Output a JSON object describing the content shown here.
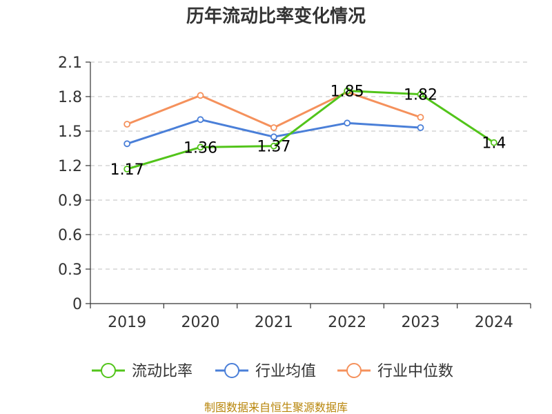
{
  "chart_data": {
    "type": "line",
    "title": "历年流动比率变化情况",
    "categories": [
      "2019",
      "2020",
      "2021",
      "2022",
      "2023",
      "2024"
    ],
    "ylim": [
      0,
      2.1
    ],
    "yticks": [
      "0",
      "0.3",
      "0.6",
      "0.9",
      "1.2",
      "1.5",
      "1.8",
      "2.1"
    ],
    "grid": true,
    "legend_position": "bottom",
    "series": [
      {
        "name": "流动比率",
        "color": "#52c41a",
        "values": [
          1.17,
          1.36,
          1.37,
          1.85,
          1.82,
          1.4
        ],
        "labels": [
          "1.17",
          "1.36",
          "1.37",
          "1.85",
          "1.82",
          "1.4"
        ]
      },
      {
        "name": "行业均值",
        "color": "#4a7fd8",
        "values": [
          1.39,
          1.6,
          1.45,
          1.57,
          1.53,
          null
        ]
      },
      {
        "name": "行业中位数",
        "color": "#f5915c",
        "values": [
          1.56,
          1.81,
          1.53,
          1.84,
          1.62,
          null
        ]
      }
    ]
  },
  "source": "制图数据来自恒生聚源数据库"
}
